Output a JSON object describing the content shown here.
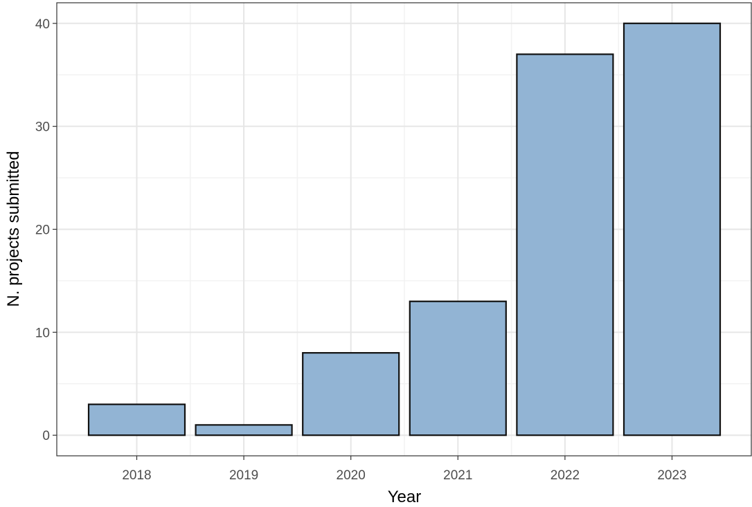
{
  "chart_data": {
    "type": "bar",
    "categories": [
      "2018",
      "2019",
      "2020",
      "2021",
      "2022",
      "2023"
    ],
    "values": [
      3,
      1,
      8,
      13,
      37,
      40
    ],
    "xlabel": "Year",
    "ylabel": "N. projects submitted",
    "ylim": [
      -2,
      42
    ],
    "yticks": [
      0,
      10,
      20,
      30,
      40
    ],
    "grid": true,
    "legend": "none",
    "colors": {
      "bar_fill": "#92b4d4",
      "bar_stroke": "#111111",
      "grid_major": "#e6e6e6",
      "grid_minor": "#f2f2f2",
      "panel_border": "#333333",
      "tick_text": "#4d4d4d"
    }
  }
}
